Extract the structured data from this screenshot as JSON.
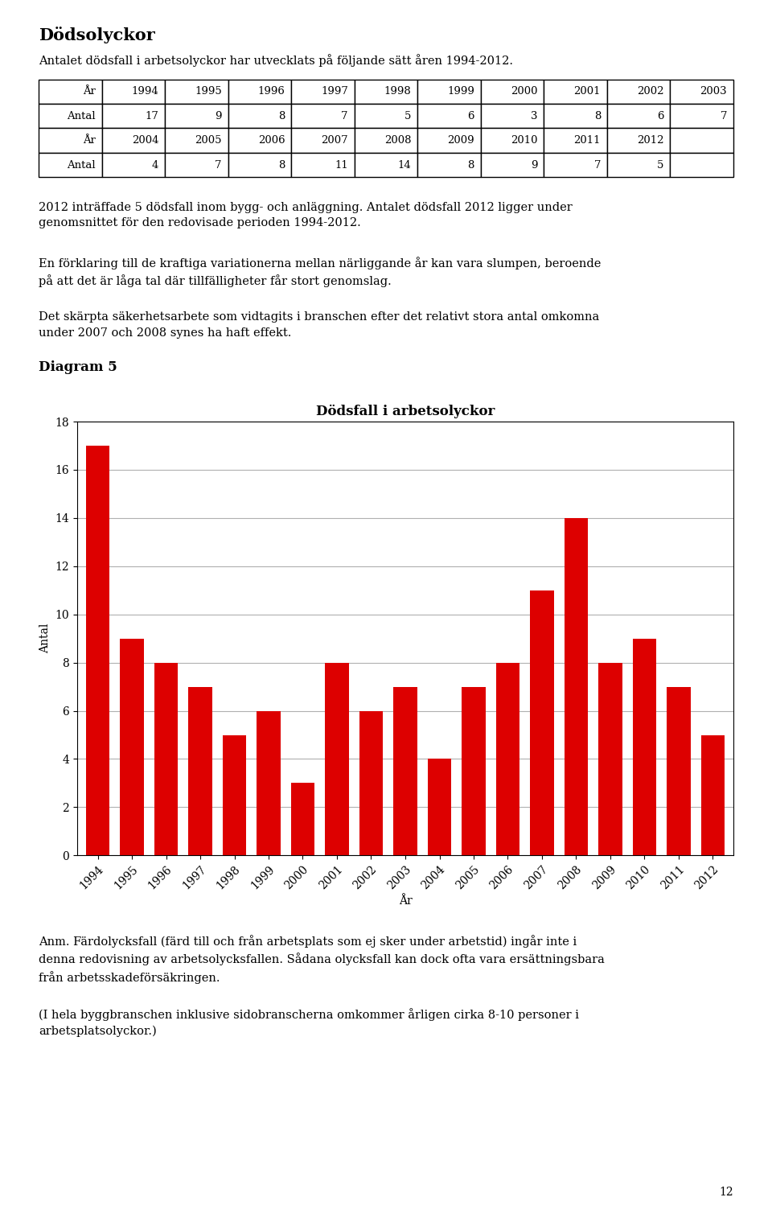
{
  "chart_data": {
    "type": "bar",
    "title": "Dödsfall i arbetsolyckor",
    "categories": [
      "1994",
      "1995",
      "1996",
      "1997",
      "1998",
      "1999",
      "2000",
      "2001",
      "2002",
      "2003",
      "2004",
      "2005",
      "2006",
      "2007",
      "2008",
      "2009",
      "2010",
      "2011",
      "2012"
    ],
    "values": [
      17,
      9,
      8,
      7,
      5,
      6,
      3,
      8,
      6,
      7,
      4,
      7,
      8,
      11,
      14,
      8,
      9,
      7,
      5
    ],
    "color": "#dd0000",
    "xlabel": "År",
    "ylabel": "Antal",
    "ylim": [
      0,
      18
    ],
    "yticks": [
      0,
      2,
      4,
      6,
      8,
      10,
      12,
      14,
      16,
      18
    ],
    "grid": true,
    "annotations": [
      "Dödsolyckor",
      "Antalet dödsfall i arbetsolyckor har utvecklats på följande sätt åren 1994-2012.",
      "2012 inträffade 5 dödsfall inom bygg- och anläggning. Antalet dödsfall 2012 ligger under\ngenomsnittet för den redovisade perioden 1994-2012.",
      "En förklaring till de kraftiga variationerna mellan närliggande år kan vara slumpen, beroende\npå att det är låga tal där tillfälligheter får stort genomslag.",
      "Det skärpta säkerhetsarbete som vidtagits i branschen efter det relativt stora antal omkomna\nunder 2007 och 2008 synes ha haft effekt.",
      "Diagram 5",
      "Anm. Färdolycksfall (färd till och från arbetsplats som ej sker under arbetstid) ingår inte i\ndenna redovisning av arbetsolycksfallen. Sådana olycksfall kan dock ofta vara ersättningsbara\nfrån arbetsskadeförsäkringen.",
      "(I hela byggbranschen inklusive sidobranscherna omkommer årligen cirka 8-10 personer i\narbetsplatsolyckor.)",
      "12"
    ]
  }
}
